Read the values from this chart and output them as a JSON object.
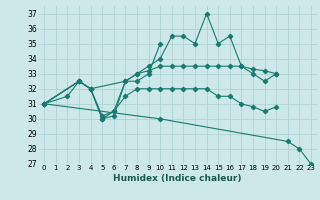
{
  "title": "",
  "xlabel": "Humidex (Indice chaleur)",
  "xlim": [
    -0.5,
    23.5
  ],
  "ylim": [
    27,
    37.5
  ],
  "yticks": [
    27,
    28,
    29,
    30,
    31,
    32,
    33,
    34,
    35,
    36,
    37
  ],
  "xticks": [
    0,
    1,
    2,
    3,
    4,
    5,
    6,
    7,
    8,
    9,
    10,
    11,
    12,
    13,
    14,
    15,
    16,
    17,
    18,
    19,
    20,
    21,
    22,
    23
  ],
  "bg_color": "#cce8e8",
  "grid_color": "#aacfcf",
  "line_color": "#1a7a6e",
  "series": [
    {
      "x": [
        0,
        2,
        3,
        4,
        5,
        6,
        7,
        8,
        9,
        10
      ],
      "y": [
        31,
        31.5,
        32.5,
        32,
        30,
        30.2,
        32.5,
        32.5,
        33,
        35
      ]
    },
    {
      "x": [
        0,
        3,
        4,
        5,
        6,
        7,
        8,
        9,
        10,
        11,
        12,
        13,
        14,
        15,
        16,
        17,
        18,
        19,
        20
      ],
      "y": [
        31,
        32.5,
        32,
        30.2,
        30.5,
        32.5,
        33,
        33.5,
        34,
        35.5,
        35.5,
        35,
        37,
        35,
        35.5,
        33.5,
        33,
        32.5,
        33
      ]
    },
    {
      "x": [
        0,
        3,
        4,
        7,
        8,
        9,
        10,
        11,
        12,
        13,
        14,
        15,
        16,
        17,
        18,
        19,
        20
      ],
      "y": [
        31,
        32.5,
        32,
        32.5,
        33,
        33.2,
        33.5,
        33.5,
        33.5,
        33.5,
        33.5,
        33.5,
        33.5,
        33.5,
        33.3,
        33.2,
        33
      ]
    },
    {
      "x": [
        0,
        3,
        4,
        5,
        6,
        7,
        8,
        9,
        10,
        11,
        12,
        13,
        14,
        15,
        16,
        17,
        18,
        19,
        20
      ],
      "y": [
        31,
        32.5,
        32,
        30,
        30.5,
        31.5,
        32,
        32,
        32,
        32,
        32,
        32,
        32,
        31.5,
        31.5,
        31,
        30.8,
        30.5,
        30.8
      ]
    },
    {
      "x": [
        0,
        10,
        21,
        22,
        23
      ],
      "y": [
        31,
        30,
        28.5,
        28,
        27
      ]
    }
  ]
}
